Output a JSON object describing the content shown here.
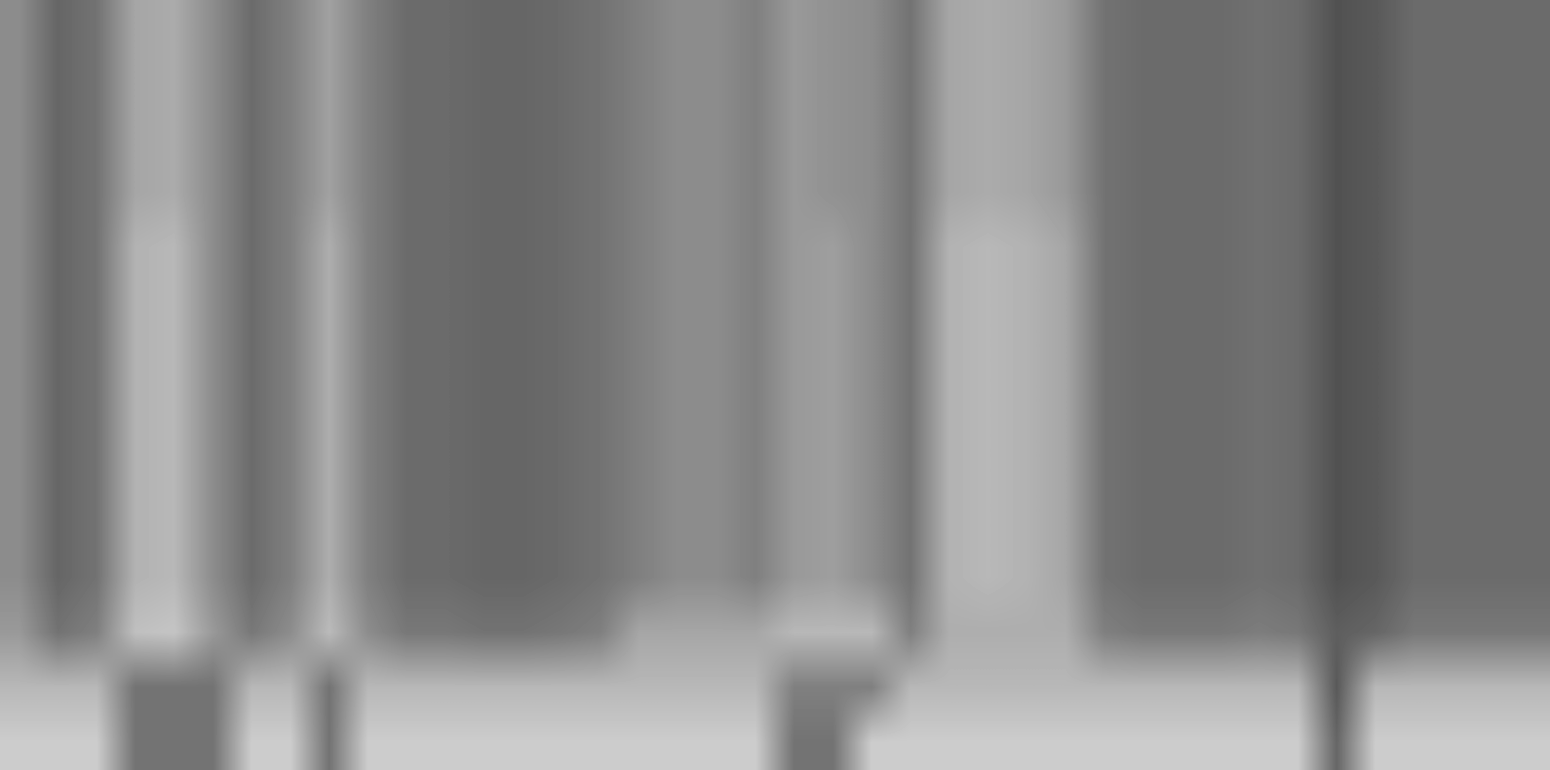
{
  "chart_data": {
    "type": "heatmap",
    "color": "gray",
    "tick_labels": false,
    "color_range": [
      0,
      1
    ],
    "cells": [
      [
        0.55,
        0.4,
        0.45,
        0.65,
        0.67,
        0.55,
        0.42,
        0.5,
        0.63,
        0.5,
        0.42,
        0.42,
        0.4,
        0.4,
        0.42,
        0.45,
        0.5,
        0.55,
        0.55,
        0.5,
        0.6,
        0.57,
        0.55,
        0.45,
        0.65,
        0.67,
        0.65,
        0.6,
        0.45,
        0.42,
        0.42,
        0.42,
        0.44,
        0.42,
        0.32,
        0.35,
        0.42,
        0.42,
        0.42,
        0.42
      ],
      [
        0.55,
        0.4,
        0.45,
        0.65,
        0.67,
        0.55,
        0.42,
        0.5,
        0.63,
        0.5,
        0.42,
        0.42,
        0.4,
        0.4,
        0.42,
        0.45,
        0.5,
        0.55,
        0.55,
        0.5,
        0.6,
        0.57,
        0.55,
        0.45,
        0.65,
        0.67,
        0.65,
        0.6,
        0.45,
        0.42,
        0.42,
        0.42,
        0.44,
        0.42,
        0.32,
        0.35,
        0.42,
        0.42,
        0.42,
        0.42
      ],
      [
        0.55,
        0.4,
        0.45,
        0.65,
        0.67,
        0.55,
        0.42,
        0.5,
        0.63,
        0.5,
        0.42,
        0.42,
        0.4,
        0.4,
        0.42,
        0.45,
        0.5,
        0.55,
        0.55,
        0.5,
        0.6,
        0.57,
        0.55,
        0.45,
        0.65,
        0.67,
        0.65,
        0.6,
        0.45,
        0.42,
        0.42,
        0.42,
        0.44,
        0.42,
        0.32,
        0.35,
        0.42,
        0.42,
        0.42,
        0.42
      ],
      [
        0.55,
        0.4,
        0.45,
        0.65,
        0.67,
        0.55,
        0.42,
        0.5,
        0.63,
        0.5,
        0.42,
        0.42,
        0.4,
        0.4,
        0.42,
        0.45,
        0.5,
        0.55,
        0.55,
        0.5,
        0.6,
        0.57,
        0.55,
        0.45,
        0.65,
        0.67,
        0.65,
        0.6,
        0.45,
        0.42,
        0.42,
        0.42,
        0.44,
        0.42,
        0.32,
        0.35,
        0.42,
        0.42,
        0.42,
        0.42
      ],
      [
        0.55,
        0.4,
        0.45,
        0.7,
        0.72,
        0.55,
        0.42,
        0.5,
        0.68,
        0.5,
        0.42,
        0.42,
        0.4,
        0.4,
        0.42,
        0.45,
        0.5,
        0.55,
        0.55,
        0.5,
        0.6,
        0.62,
        0.55,
        0.45,
        0.7,
        0.72,
        0.7,
        0.65,
        0.45,
        0.42,
        0.42,
        0.42,
        0.44,
        0.42,
        0.32,
        0.35,
        0.42,
        0.42,
        0.42,
        0.42
      ],
      [
        0.55,
        0.4,
        0.45,
        0.7,
        0.72,
        0.55,
        0.42,
        0.5,
        0.68,
        0.5,
        0.42,
        0.42,
        0.4,
        0.4,
        0.42,
        0.45,
        0.5,
        0.55,
        0.55,
        0.5,
        0.6,
        0.62,
        0.55,
        0.45,
        0.7,
        0.72,
        0.7,
        0.65,
        0.45,
        0.42,
        0.42,
        0.42,
        0.44,
        0.42,
        0.32,
        0.35,
        0.42,
        0.42,
        0.42,
        0.42
      ],
      [
        0.55,
        0.4,
        0.45,
        0.7,
        0.72,
        0.55,
        0.42,
        0.5,
        0.68,
        0.5,
        0.42,
        0.42,
        0.4,
        0.4,
        0.42,
        0.45,
        0.5,
        0.55,
        0.55,
        0.5,
        0.6,
        0.62,
        0.55,
        0.45,
        0.7,
        0.72,
        0.7,
        0.65,
        0.45,
        0.42,
        0.42,
        0.42,
        0.44,
        0.42,
        0.32,
        0.35,
        0.42,
        0.42,
        0.42,
        0.42
      ],
      [
        0.55,
        0.4,
        0.45,
        0.7,
        0.72,
        0.55,
        0.42,
        0.5,
        0.68,
        0.5,
        0.42,
        0.42,
        0.4,
        0.4,
        0.42,
        0.45,
        0.5,
        0.55,
        0.55,
        0.5,
        0.6,
        0.62,
        0.55,
        0.45,
        0.7,
        0.72,
        0.7,
        0.65,
        0.45,
        0.42,
        0.42,
        0.42,
        0.44,
        0.42,
        0.32,
        0.35,
        0.42,
        0.42,
        0.42,
        0.42
      ],
      [
        0.55,
        0.4,
        0.45,
        0.7,
        0.72,
        0.55,
        0.42,
        0.5,
        0.68,
        0.5,
        0.42,
        0.42,
        0.4,
        0.4,
        0.42,
        0.45,
        0.5,
        0.55,
        0.55,
        0.5,
        0.6,
        0.62,
        0.55,
        0.45,
        0.7,
        0.72,
        0.7,
        0.65,
        0.45,
        0.42,
        0.42,
        0.42,
        0.44,
        0.42,
        0.32,
        0.35,
        0.42,
        0.42,
        0.42,
        0.42
      ],
      [
        0.55,
        0.4,
        0.45,
        0.7,
        0.72,
        0.55,
        0.42,
        0.5,
        0.68,
        0.5,
        0.42,
        0.42,
        0.4,
        0.4,
        0.42,
        0.45,
        0.5,
        0.55,
        0.55,
        0.5,
        0.6,
        0.62,
        0.55,
        0.45,
        0.7,
        0.72,
        0.7,
        0.65,
        0.45,
        0.42,
        0.42,
        0.42,
        0.44,
        0.42,
        0.32,
        0.35,
        0.42,
        0.42,
        0.42,
        0.42
      ],
      [
        0.55,
        0.4,
        0.45,
        0.7,
        0.72,
        0.55,
        0.42,
        0.5,
        0.68,
        0.5,
        0.42,
        0.42,
        0.4,
        0.4,
        0.42,
        0.45,
        0.5,
        0.55,
        0.55,
        0.5,
        0.6,
        0.62,
        0.55,
        0.45,
        0.7,
        0.72,
        0.7,
        0.65,
        0.45,
        0.42,
        0.42,
        0.42,
        0.44,
        0.42,
        0.32,
        0.35,
        0.42,
        0.42,
        0.42,
        0.42
      ],
      [
        0.6,
        0.45,
        0.5,
        0.75,
        0.77,
        0.6,
        0.47,
        0.55,
        0.73,
        0.55,
        0.47,
        0.47,
        0.45,
        0.45,
        0.47,
        0.5,
        0.65,
        0.65,
        0.65,
        0.65,
        0.72,
        0.72,
        0.72,
        0.5,
        0.68,
        0.68,
        0.68,
        0.68,
        0.5,
        0.47,
        0.47,
        0.47,
        0.49,
        0.47,
        0.37,
        0.4,
        0.47,
        0.47,
        0.47,
        0.47
      ],
      [
        0.72,
        0.72,
        0.72,
        0.45,
        0.45,
        0.45,
        0.72,
        0.72,
        0.45,
        0.72,
        0.72,
        0.72,
        0.72,
        0.72,
        0.72,
        0.72,
        0.72,
        0.72,
        0.72,
        0.72,
        0.5,
        0.5,
        0.5,
        0.72,
        0.72,
        0.72,
        0.72,
        0.72,
        0.72,
        0.72,
        0.72,
        0.72,
        0.72,
        0.72,
        0.35,
        0.72,
        0.72,
        0.72,
        0.72,
        0.72
      ],
      [
        0.8,
        0.8,
        0.8,
        0.45,
        0.45,
        0.45,
        0.8,
        0.8,
        0.45,
        0.8,
        0.8,
        0.8,
        0.8,
        0.8,
        0.8,
        0.8,
        0.8,
        0.8,
        0.8,
        0.8,
        0.45,
        0.45,
        0.8,
        0.8,
        0.8,
        0.8,
        0.8,
        0.8,
        0.8,
        0.8,
        0.8,
        0.8,
        0.8,
        0.8,
        0.4,
        0.8,
        0.8,
        0.8,
        0.8,
        0.8
      ]
    ]
  }
}
